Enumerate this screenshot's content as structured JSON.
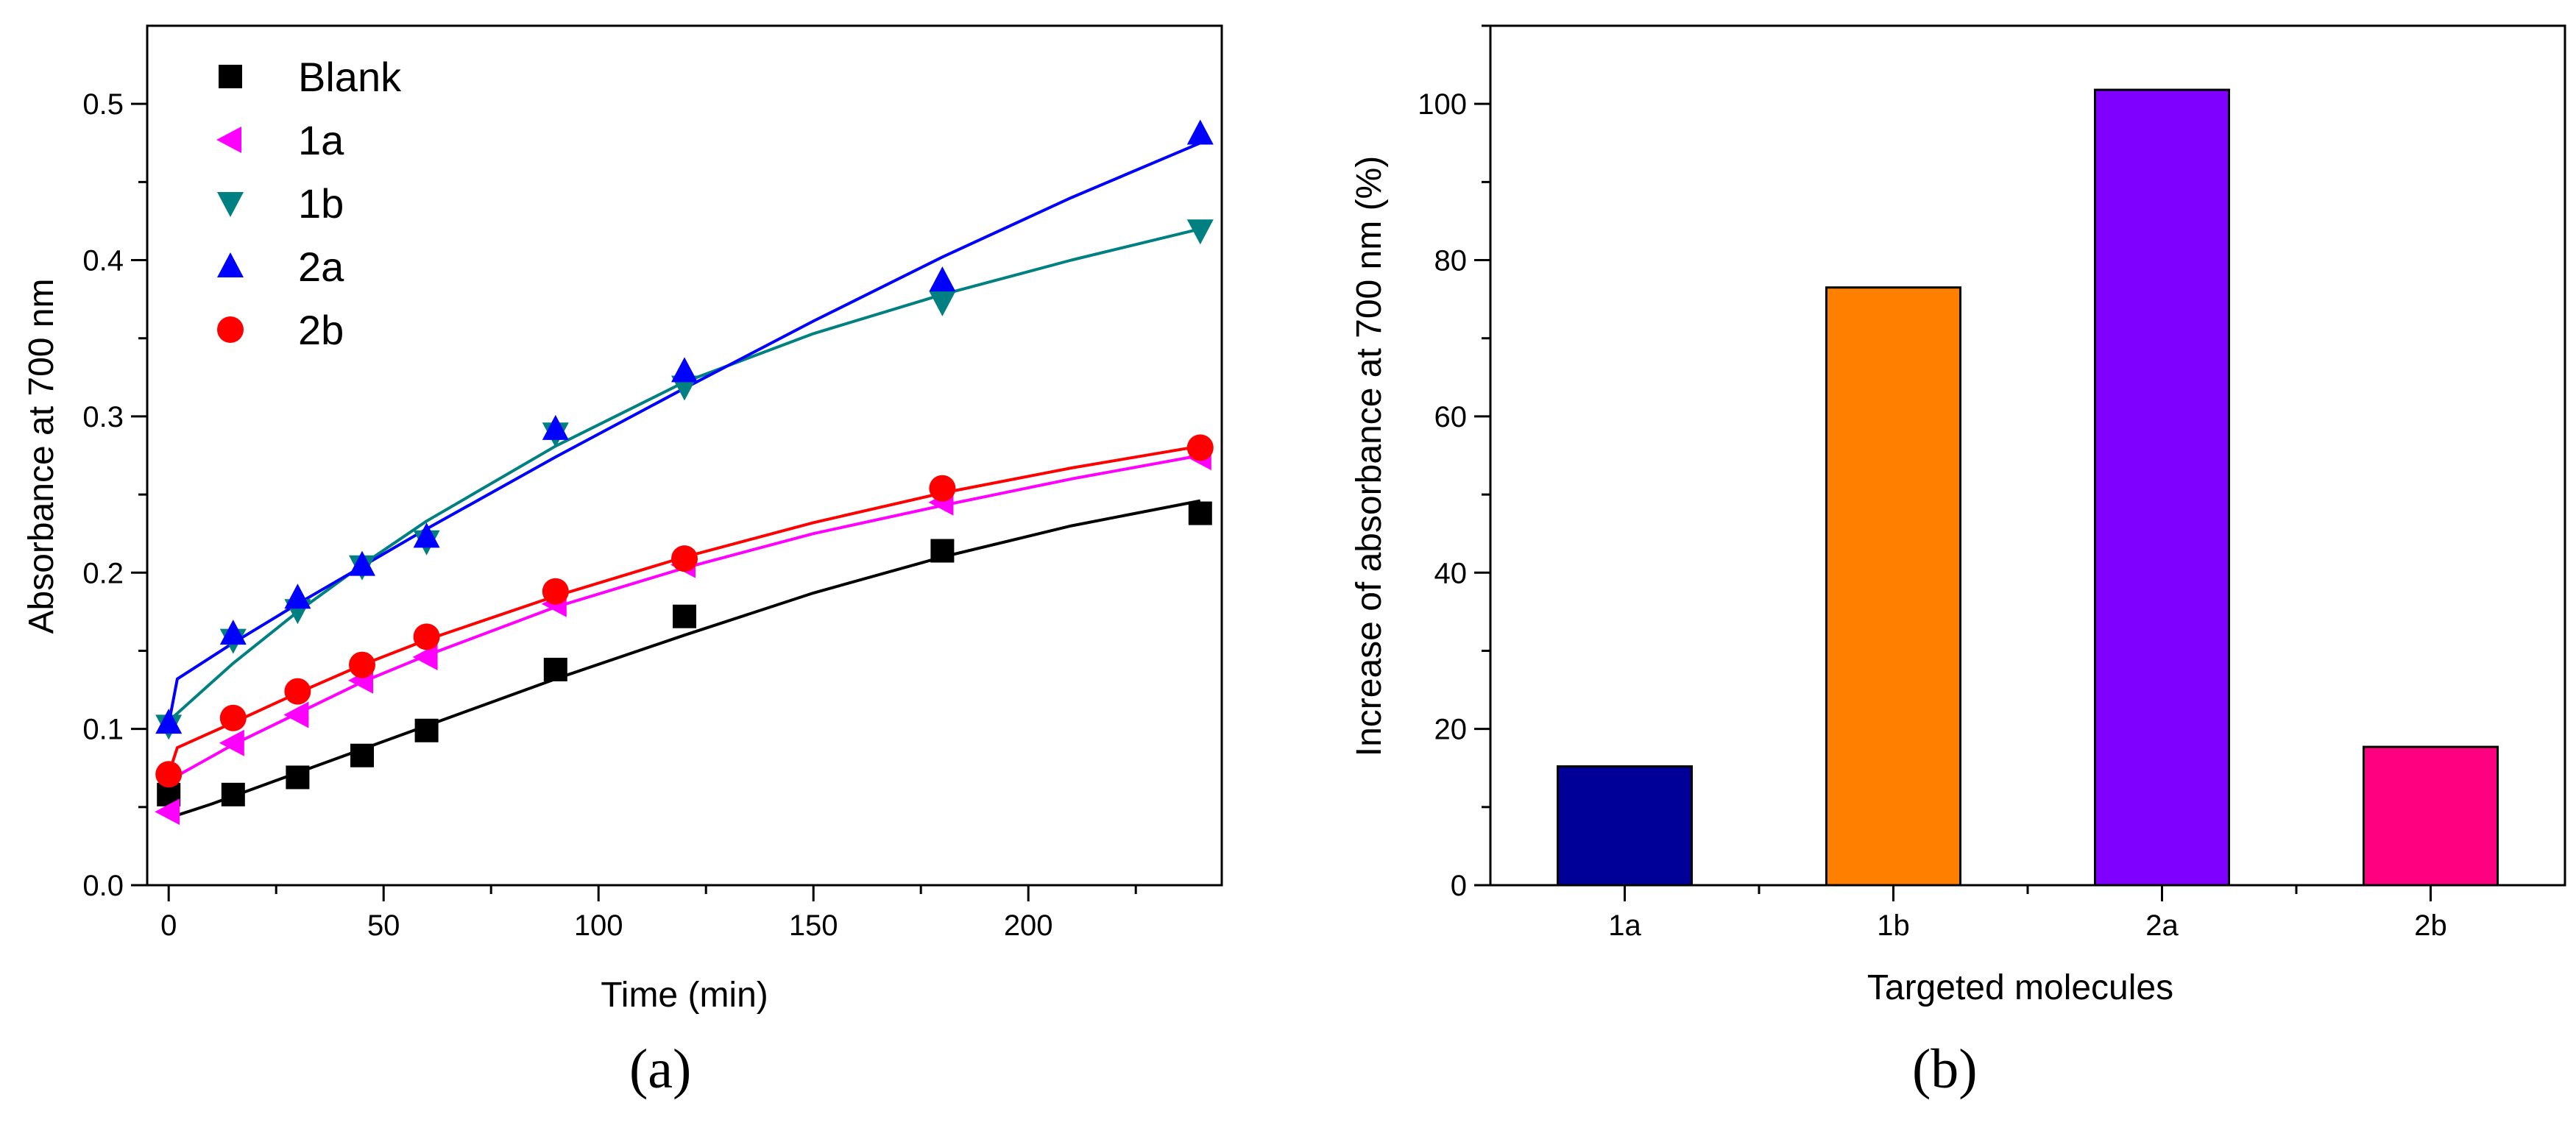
{
  "chart_data": [
    {
      "panel": "a",
      "type": "scatter",
      "xlabel": "Time (min)",
      "ylabel": "Absorbance at 700 nm",
      "xlim": [
        -5,
        245
      ],
      "ylim": [
        0,
        0.55
      ],
      "x_ticks": [
        0,
        50,
        100,
        150,
        200
      ],
      "y_ticks": [
        0.0,
        0.1,
        0.2,
        0.3,
        0.4,
        0.5
      ],
      "y_tick_labels": [
        "0.0",
        "0.1",
        "0.2",
        "0.3",
        "0.4",
        "0.5"
      ],
      "legend_position": "top-left",
      "series": [
        {
          "name": "Blank",
          "marker": "square",
          "color": "#000000",
          "x": [
            0,
            15,
            30,
            45,
            60,
            90,
            120,
            180,
            240
          ],
          "y": [
            0.058,
            0.058,
            0.069,
            0.083,
            0.099,
            0.138,
            0.172,
            0.214,
            0.238
          ],
          "fit": {
            "x": [
              0,
              10,
              30,
              60,
              90,
              120,
              150,
              180,
              210,
              240
            ],
            "y": [
              0.043,
              0.052,
              0.072,
              0.102,
              0.132,
              0.16,
              0.187,
              0.21,
              0.23,
              0.246
            ]
          }
        },
        {
          "name": "1a",
          "marker": "triangle-left",
          "color": "#ff00ff",
          "x": [
            0,
            15,
            30,
            45,
            60,
            90,
            120,
            180,
            240
          ],
          "y": [
            0.047,
            0.091,
            0.109,
            0.131,
            0.146,
            0.18,
            0.205,
            0.245,
            0.274
          ],
          "fit": {
            "x": [
              0,
              2,
              15,
              30,
              45,
              60,
              90,
              120,
              150,
              180,
              210,
              240
            ],
            "y": [
              0.05,
              0.07,
              0.09,
              0.11,
              0.13,
              0.147,
              0.178,
              0.203,
              0.225,
              0.243,
              0.26,
              0.275
            ]
          }
        },
        {
          "name": "1b",
          "marker": "triangle-down",
          "color": "#008080",
          "x": [
            0,
            15,
            30,
            45,
            60,
            90,
            120,
            180,
            240
          ],
          "y": [
            0.102,
            0.157,
            0.176,
            0.204,
            0.22,
            0.289,
            0.319,
            0.373,
            0.419
          ],
          "fit": {
            "x": [
              0,
              15,
              30,
              45,
              60,
              90,
              120,
              150,
              180,
              210,
              240
            ],
            "y": [
              0.105,
              0.142,
              0.175,
              0.205,
              0.233,
              0.281,
              0.322,
              0.353,
              0.378,
              0.4,
              0.42
            ]
          }
        },
        {
          "name": "2a",
          "marker": "triangle-up",
          "color": "#0000ff",
          "x": [
            0,
            15,
            30,
            45,
            60,
            90,
            120,
            180,
            240
          ],
          "y": [
            0.104,
            0.161,
            0.184,
            0.205,
            0.223,
            0.292,
            0.329,
            0.387,
            0.481
          ],
          "fit": {
            "x": [
              0,
              2,
              15,
              30,
              45,
              60,
              90,
              120,
              150,
              180,
              210,
              240
            ],
            "y": [
              0.103,
              0.132,
              0.155,
              0.18,
              0.204,
              0.228,
              0.274,
              0.318,
              0.361,
              0.402,
              0.44,
              0.475
            ]
          }
        },
        {
          "name": "2b",
          "marker": "circle",
          "color": "#ff0000",
          "x": [
            0,
            15,
            30,
            45,
            60,
            90,
            120,
            180,
            240
          ],
          "y": [
            0.071,
            0.107,
            0.124,
            0.141,
            0.159,
            0.188,
            0.209,
            0.254,
            0.28
          ],
          "fit": {
            "x": [
              0,
              2,
              15,
              30,
              45,
              60,
              90,
              120,
              150,
              180,
              210,
              240
            ],
            "y": [
              0.071,
              0.088,
              0.104,
              0.123,
              0.141,
              0.157,
              0.185,
              0.21,
              0.232,
              0.251,
              0.267,
              0.281
            ]
          }
        }
      ],
      "panel_label": "(a)"
    },
    {
      "panel": "b",
      "type": "bar",
      "xlabel": "Targeted molecules",
      "ylabel": "Increase of absorbance at 700 nm (%)",
      "categories": [
        "1a",
        "1b",
        "2a",
        "2b"
      ],
      "values": [
        15.2,
        76.5,
        101.8,
        17.7
      ],
      "colors": [
        "#000099",
        "#ff8000",
        "#8000ff",
        "#ff0080"
      ],
      "ylim": [
        0,
        110
      ],
      "y_ticks": [
        0,
        20,
        40,
        60,
        80,
        100
      ],
      "panel_label": "(b)"
    }
  ]
}
